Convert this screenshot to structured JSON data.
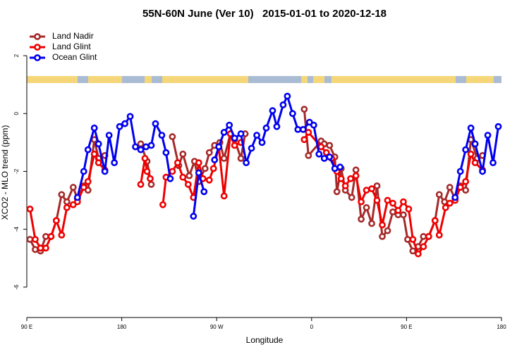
{
  "chart_data": {
    "type": "line",
    "title": "55N-60N June (Ver 10)   2015-01-01 to 2020-12-18",
    "x_label": "Longitude",
    "y_label": "XCO2 - MLO trend (ppm)",
    "xlim": [
      90,
      540
    ],
    "ylim": [
      -7.05,
      3.0
    ],
    "xticks": [
      {
        "value": 90,
        "label": "90 E"
      },
      {
        "value": 180,
        "label": "180"
      },
      {
        "value": 270,
        "label": "90 W"
      },
      {
        "value": 360,
        "label": "0"
      },
      {
        "value": 450,
        "label": "90 E"
      },
      {
        "value": 540,
        "label": "180"
      }
    ],
    "yticks": [
      -6,
      -4,
      -2,
      0,
      2
    ],
    "legend": "top-left",
    "series": [
      {
        "name": "Land Nadir",
        "color": "#a52a2a",
        "x": [
          93,
          98,
          103,
          108,
          113,
          118,
          123,
          128,
          134,
          138,
          144,
          148,
          154,
          158,
          164,
          null,
          198,
          204,
          208,
          null,
          228,
          234,
          238,
          244,
          249,
          253,
          259,
          263,
          268,
          273,
          277,
          283,
          287,
          293,
          297,
          null,
          353,
          357,
          369,
          372,
          377,
          382,
          384,
          388,
          392,
          398,
          402,
          407,
          412,
          417,
          422,
          427,
          432,
          437,
          442,
          447,
          451,
          456,
          461,
          466,
          471,
          477,
          481,
          486,
          491,
          496,
          501,
          506,
          511,
          517,
          522
        ],
        "values": [
          -4.35,
          -4.7,
          -4.75,
          -4.25,
          -4.25,
          -3.7,
          -2.8,
          -3.05,
          -2.55,
          -2.95,
          -2.5,
          -2.65,
          -0.9,
          -1.55,
          -1.45,
          null,
          -1.05,
          -1.65,
          -2.45,
          null,
          -0.8,
          -1.8,
          -1.4,
          -2.15,
          -1.65,
          -2.35,
          -1.9,
          -1.35,
          -1.1,
          -1.0,
          -1.55,
          -0.7,
          -0.9,
          -1.55,
          -0.7,
          null,
          0.15,
          -1.45,
          -0.95,
          -1.05,
          -1.1,
          -1.5,
          -2.7,
          -1.9,
          -2.65,
          -2.9,
          -1.95,
          -3.65,
          -3.25,
          -3.8,
          -2.5,
          -4.25,
          -4.05,
          -3.4,
          -3.5,
          -3.5,
          -4.35,
          -4.75,
          -4.6,
          -4.25,
          -4.25,
          -3.7,
          -2.8,
          -3.05,
          -2.55,
          -2.95,
          -2.5,
          -2.65,
          -0.9,
          -1.55,
          -1.45
        ]
      },
      {
        "name": "Land Glint",
        "color": "#ee0000",
        "x": [
          93,
          98,
          103,
          108,
          113,
          118,
          123,
          128,
          134,
          138,
          144,
          148,
          154,
          158,
          164,
          null,
          198,
          202,
          204,
          207,
          null,
          219,
          222,
          228,
          233,
          238,
          243,
          248,
          253,
          257,
          263,
          267,
          272,
          277,
          283,
          287,
          293,
          null,
          353,
          357,
          369,
          374,
          379,
          384,
          388,
          392,
          397,
          402,
          407,
          412,
          417,
          422,
          427,
          432,
          437,
          442,
          447,
          452,
          456,
          461,
          466,
          471,
          477,
          481,
          487,
          491,
          496,
          501,
          506,
          511,
          515,
          522
        ],
        "values": [
          -3.3,
          -4.35,
          -4.65,
          -4.65,
          -4.25,
          -3.7,
          -4.2,
          -3.25,
          -3.15,
          -3.05,
          -2.55,
          -2.35,
          -1.4,
          -1.7,
          -1.95,
          null,
          -2.45,
          -1.55,
          -2.0,
          -2.25,
          null,
          -3.15,
          -2.2,
          -2.0,
          -1.7,
          -2.2,
          -2.45,
          -2.9,
          -1.7,
          -2.25,
          -2.3,
          -1.9,
          -1.15,
          -2.85,
          -0.7,
          -1.1,
          -1.0,
          null,
          -0.9,
          -0.65,
          -1.15,
          -1.35,
          -1.55,
          -2.0,
          -2.25,
          -2.5,
          -2.25,
          -2.15,
          -3.05,
          -2.65,
          -2.6,
          -3.0,
          -3.85,
          -3.0,
          -3.1,
          -3.35,
          -3.05,
          -3.3,
          -4.35,
          -4.85,
          -4.6,
          -4.25,
          -3.7,
          -4.2,
          -3.25,
          -3.1,
          -3.0,
          -2.55,
          -2.35,
          -1.4,
          -1.7,
          -1.95
        ]
      },
      {
        "name": "Ocean Glint",
        "color": "#0000ee",
        "x": [
          138,
          144,
          148,
          154,
          158,
          164,
          168,
          173,
          178,
          183,
          188,
          193,
          198,
          203,
          208,
          212,
          218,
          222,
          226,
          null,
          248,
          253,
          258,
          null,
          268,
          272,
          277,
          282,
          287,
          293,
          298,
          303,
          308,
          313,
          317,
          323,
          327,
          333,
          337,
          342,
          347,
          352,
          358,
          362,
          367,
          372,
          377,
          382,
          387,
          null,
          496,
          501,
          506,
          511,
          515,
          522,
          527,
          532,
          537
        ],
        "values": [
          -2.9,
          -2.0,
          -1.25,
          -0.5,
          -1.05,
          -2.0,
          -0.75,
          -1.7,
          -0.45,
          -0.35,
          -0.1,
          -1.15,
          -1.25,
          -1.15,
          -1.1,
          -0.35,
          -0.75,
          -1.35,
          -2.25,
          null,
          -3.55,
          -2.05,
          -2.7,
          null,
          -1.6,
          -1.15,
          -0.65,
          -0.4,
          -0.85,
          -0.7,
          -1.7,
          -1.2,
          -0.75,
          -1.0,
          -0.5,
          0.1,
          -0.45,
          0.3,
          0.6,
          0.0,
          -0.55,
          -0.55,
          -0.3,
          -0.4,
          -1.4,
          -1.55,
          -1.5,
          -1.9,
          -1.85,
          null,
          -2.9,
          -2.0,
          -1.25,
          -0.5,
          -1.05,
          -2.0,
          -0.75,
          -1.7,
          -0.45
        ]
      }
    ]
  }
}
